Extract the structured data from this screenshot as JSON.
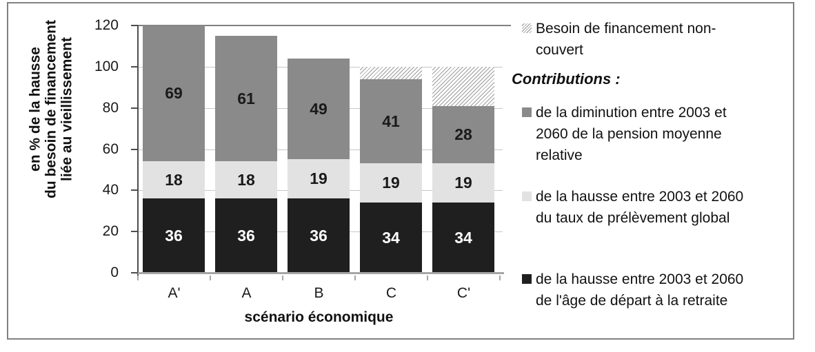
{
  "chart_data": {
    "type": "bar",
    "variant": "stacked",
    "categories": [
      "A'",
      "A",
      "B",
      "C",
      "C'"
    ],
    "series": [
      {
        "name": "de la hausse entre 2003 et 2060 de l'âge de départ à la retraite",
        "color": "#1f1f1f",
        "text_color": "#ffffff",
        "values": [
          36,
          36,
          36,
          34,
          34
        ],
        "data_labels": true
      },
      {
        "name": "de la hausse entre 2003 et 2060 du taux de prélèvement global",
        "color": "#e2e2e2",
        "text_color": "#1a1a1a",
        "values": [
          18,
          18,
          19,
          19,
          19
        ],
        "data_labels": true
      },
      {
        "name": "de la diminution entre 2003 et 2060 de la pension moyenne relative",
        "color": "#8a8a8a",
        "text_color": "#1a1a1a",
        "values": [
          69,
          61,
          49,
          41,
          28
        ],
        "data_labels": true
      },
      {
        "name": "Besoin de financement non-couvert",
        "pattern": "diagonal-hatch",
        "values": [
          0,
          0,
          0,
          6,
          19
        ],
        "data_labels": false
      }
    ],
    "ylim": [
      0,
      120
    ],
    "yticks": [
      0,
      20,
      40,
      60,
      80,
      100,
      120
    ],
    "xlabel": "scénario économique",
    "ylabel_lines": [
      "en % de la hausse",
      "du besoin de financement",
      "liée au vieillissement"
    ],
    "grid": "horizontal",
    "legend_position": "right"
  },
  "legend": {
    "uncovered_item": {
      "swatch": "hatch",
      "label_lines": [
        "Besoin de financement non-",
        "couvert"
      ]
    },
    "heading": "Contributions :",
    "items": [
      {
        "swatch": "#8a8a8a",
        "label_lines": [
          "de la diminution entre 2003 et",
          "2060 de la pension moyenne",
          "relative"
        ]
      },
      {
        "swatch": "#e2e2e2",
        "label_lines": [
          "de la hausse entre 2003 et 2060",
          "du taux de prélèvement global"
        ]
      },
      {
        "swatch": "#1f1f1f",
        "label_lines": [
          "de la hausse entre 2003 et 2060",
          "de l'âge de départ à la retraite"
        ]
      }
    ]
  },
  "colors": {
    "bar_dark": "#1f1f1f",
    "bar_light_gray": "#e2e2e2",
    "bar_mid_gray": "#8a8a8a",
    "hatch_line": "#9a9a9a",
    "grid_line": "#c6c6c6",
    "grid_top_line": "#808080",
    "axis_line": "#4d4d4d",
    "baseline": "#a6a6a6",
    "frame_border": "#808080",
    "text": "#1a1a1a"
  }
}
